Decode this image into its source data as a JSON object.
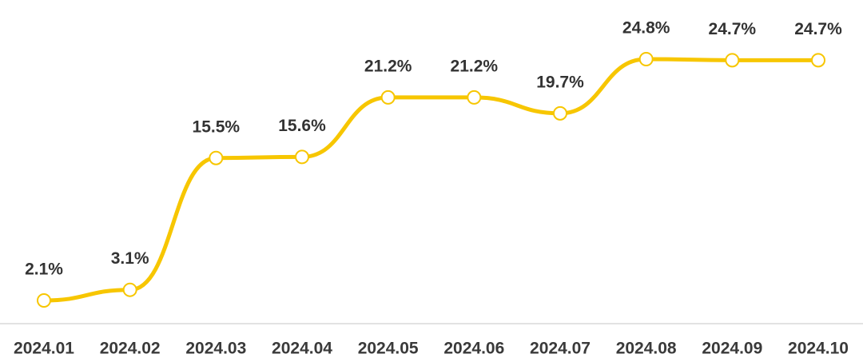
{
  "chart_data": {
    "type": "line",
    "categories": [
      "2024.01",
      "2024.02",
      "2024.03",
      "2024.04",
      "2024.05",
      "2024.06",
      "2024.07",
      "2024.08",
      "2024.09",
      "2024.10"
    ],
    "series": [
      {
        "color": "#f7c600",
        "values": [
          2.1,
          3.1,
          15.5,
          15.6,
          21.2,
          21.2,
          19.7,
          24.8,
          24.7,
          24.7
        ],
        "value_labels": [
          "2.1%",
          "3.1%",
          "15.5%",
          "15.6%",
          "21.2%",
          "21.2%",
          "19.7%",
          "24.8%",
          "24.7%",
          "24.7%"
        ]
      }
    ]
  }
}
